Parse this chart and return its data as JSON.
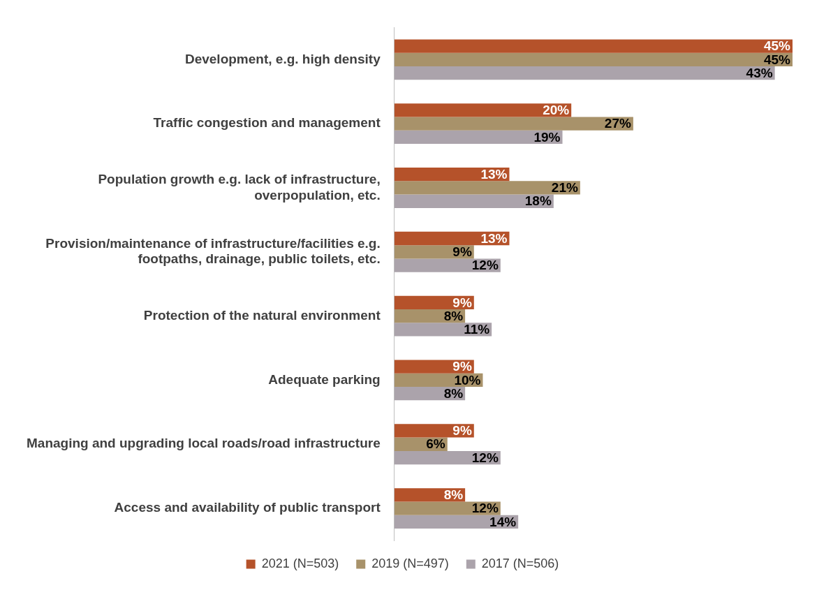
{
  "chart_data": {
    "type": "bar",
    "orientation": "horizontal",
    "legend": "bottom",
    "categories": [
      "Development, e.g. high density",
      "Traffic congestion and management",
      "Population growth e.g. lack of infrastructure,\noverpopulation, etc.",
      "Provision/maintenance of infrastructure/facilities e.g.\nfootpaths, drainage, public toilets, etc.",
      "Protection of the natural environment",
      "Adequate parking",
      "Managing and upgrading local roads/road infrastructure",
      "Access and availability of public transport"
    ],
    "series": [
      {
        "name": "2021 (N=503)",
        "color": "#b5522a",
        "values": [
          45,
          20,
          13,
          13,
          9,
          9,
          9,
          8
        ],
        "value_labels": [
          "45%",
          "20%",
          "13%",
          "13%",
          "9%",
          "9%",
          "9%",
          "8%"
        ]
      },
      {
        "name": "2019 (N=497)",
        "color": "#a8926a",
        "values": [
          45,
          27,
          21,
          9,
          8,
          10,
          6,
          12
        ],
        "value_labels": [
          "45%",
          "27%",
          "21%",
          "9%",
          "8%",
          "10%",
          "6%",
          "12%"
        ]
      },
      {
        "name": "2017 (N=506)",
        "color": "#aba3ab",
        "values": [
          43,
          19,
          18,
          12,
          11,
          8,
          12,
          14
        ],
        "value_labels": [
          "43%",
          "19%",
          "18%",
          "12%",
          "11%",
          "8%",
          "12%",
          "14%"
        ]
      }
    ]
  }
}
